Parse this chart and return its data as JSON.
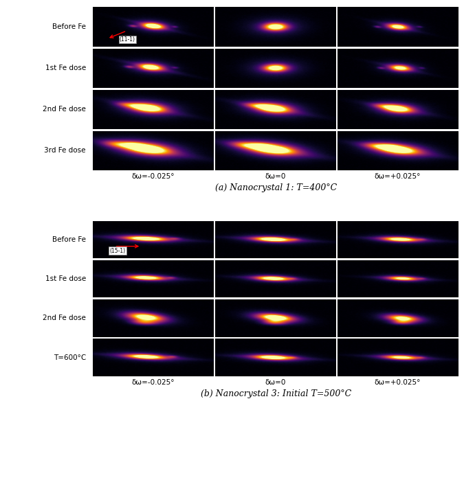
{
  "panel_a": {
    "title": "(a) Nanocrystal 1: T=400°C",
    "row_labels": [
      "Before Fe",
      "1st Fe dose",
      "2nd Fe dose",
      "3rd Fe dose"
    ],
    "col_labels": [
      "δω=-0.025°",
      "δω=0",
      "δω=+0.025°"
    ],
    "arrow_label": "(11-1)",
    "n_rows": 4,
    "n_cols": 3
  },
  "panel_b": {
    "title": "(b) Nanocrystal 3: Initial T=500°C",
    "row_labels": [
      "Before Fe",
      "1st Fe dose",
      "2nd Fe dose",
      "T=600°C"
    ],
    "col_labels": [
      "δω=-0.025°",
      "δω=0",
      "δω=+0.025°"
    ],
    "arrow_label": "(15-1)",
    "n_rows": 4,
    "n_cols": 3
  },
  "bg_color": "#ffffff"
}
